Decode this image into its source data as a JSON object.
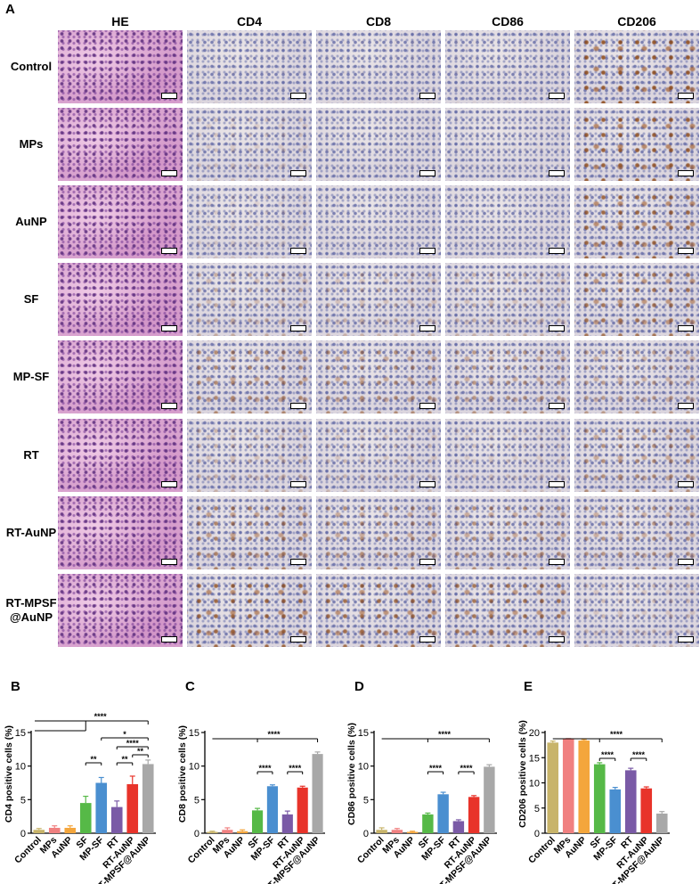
{
  "figure": {
    "panel_a_letter": "A",
    "column_headers": [
      "HE",
      "CD4",
      "CD8",
      "CD86",
      "CD206"
    ],
    "row_labels": [
      [
        "Control"
      ],
      [
        "MPs"
      ],
      [
        "AuNP"
      ],
      [
        "SF"
      ],
      [
        "MP-SF"
      ],
      [
        "RT"
      ],
      [
        "RT-AuNP"
      ],
      [
        "RT-MPSF",
        "@AuNP"
      ]
    ]
  },
  "chart_data": [
    {
      "panel": "B",
      "type": "bar",
      "ylabel": "CD4 positive cells (%)",
      "ylim": [
        0,
        15
      ],
      "yticks": [
        0,
        5,
        10,
        15
      ],
      "categories": [
        "Control",
        "MPs",
        "AuNP",
        "SF",
        "MP-SF",
        "RT",
        "RT-AuNP",
        "RT-MPSF@AuNP"
      ],
      "values": [
        0.5,
        0.8,
        0.8,
        4.5,
        7.5,
        3.9,
        7.3,
        10.3
      ],
      "errors": [
        0.2,
        0.3,
        0.3,
        1.0,
        0.8,
        0.9,
        1.2,
        0.6
      ],
      "colors": [
        "#c8b46a",
        "#f08080",
        "#f4a63c",
        "#56b947",
        "#4a8fd0",
        "#7a5aa6",
        "#e8332a",
        "#a8a8a8"
      ],
      "significance": [
        {
          "from": 0,
          "to": 7,
          "label": "****"
        },
        {
          "from": 4,
          "to": 7,
          "label": "*"
        },
        {
          "from": 5,
          "to": 7,
          "label": "****"
        },
        {
          "from": 6,
          "to": 7,
          "label": "**"
        },
        {
          "from": 3,
          "to": 4,
          "label": "**"
        },
        {
          "from": 5,
          "to": 6,
          "label": "**"
        }
      ]
    },
    {
      "panel": "C",
      "type": "bar",
      "ylabel": "CD8 positive cells (%)",
      "ylim": [
        0,
        15
      ],
      "yticks": [
        0,
        5,
        10,
        15
      ],
      "categories": [
        "Control",
        "MPs",
        "AuNP",
        "SF",
        "MP-SF",
        "RT",
        "RT-AuNP",
        "RT-MPSF@AuNP"
      ],
      "values": [
        0.2,
        0.5,
        0.3,
        3.4,
        7.0,
        2.8,
        6.8,
        11.8
      ],
      "errors": [
        0.1,
        0.3,
        0.2,
        0.3,
        0.2,
        0.5,
        0.2,
        0.3
      ],
      "colors": [
        "#c8b46a",
        "#f08080",
        "#f4a63c",
        "#56b947",
        "#4a8fd0",
        "#7a5aa6",
        "#e8332a",
        "#a8a8a8"
      ],
      "significance": [
        {
          "from": 0,
          "to": 7,
          "label": "****"
        },
        {
          "from": 3,
          "to": 4,
          "label": "****"
        },
        {
          "from": 5,
          "to": 6,
          "label": "****"
        }
      ]
    },
    {
      "panel": "D",
      "type": "bar",
      "ylabel": "CD86 positive cells (%)",
      "ylim": [
        0,
        15
      ],
      "yticks": [
        0,
        5,
        10,
        15
      ],
      "categories": [
        "Control",
        "MPs",
        "AuNP",
        "SF",
        "MP-SF",
        "RT",
        "RT-AuNP",
        "RT-MPSF@AuNP"
      ],
      "values": [
        0.5,
        0.5,
        0.2,
        2.8,
        5.8,
        1.8,
        5.4,
        9.9
      ],
      "errors": [
        0.3,
        0.2,
        0.1,
        0.2,
        0.3,
        0.2,
        0.2,
        0.3
      ],
      "colors": [
        "#c8b46a",
        "#f08080",
        "#f4a63c",
        "#56b947",
        "#4a8fd0",
        "#7a5aa6",
        "#e8332a",
        "#a8a8a8"
      ],
      "significance": [
        {
          "from": 0,
          "to": 7,
          "label": "****"
        },
        {
          "from": 3,
          "to": 4,
          "label": "****"
        },
        {
          "from": 5,
          "to": 6,
          "label": "****"
        }
      ]
    },
    {
      "panel": "E",
      "type": "bar",
      "ylabel": "CD206 positive cells (%)",
      "ylim": [
        0,
        20
      ],
      "yticks": [
        0,
        5,
        10,
        15,
        20
      ],
      "categories": [
        "Control",
        "MPs",
        "AuNP",
        "SF",
        "MP-SF",
        "RT",
        "RT-AuNP",
        "RT-MPSF@AuNP"
      ],
      "values": [
        18.0,
        18.7,
        18.4,
        13.7,
        8.7,
        12.5,
        8.9,
        3.9
      ],
      "errors": [
        0.3,
        0.1,
        0.2,
        0.3,
        0.4,
        0.4,
        0.3,
        0.4
      ],
      "colors": [
        "#c8b46a",
        "#f08080",
        "#f4a63c",
        "#56b947",
        "#4a8fd0",
        "#7a5aa6",
        "#e8332a",
        "#a8a8a8"
      ],
      "significance": [
        {
          "from": 0,
          "to": 7,
          "label": "****"
        },
        {
          "from": 3,
          "to": 4,
          "label": "****"
        },
        {
          "from": 5,
          "to": 6,
          "label": "****"
        }
      ]
    }
  ]
}
